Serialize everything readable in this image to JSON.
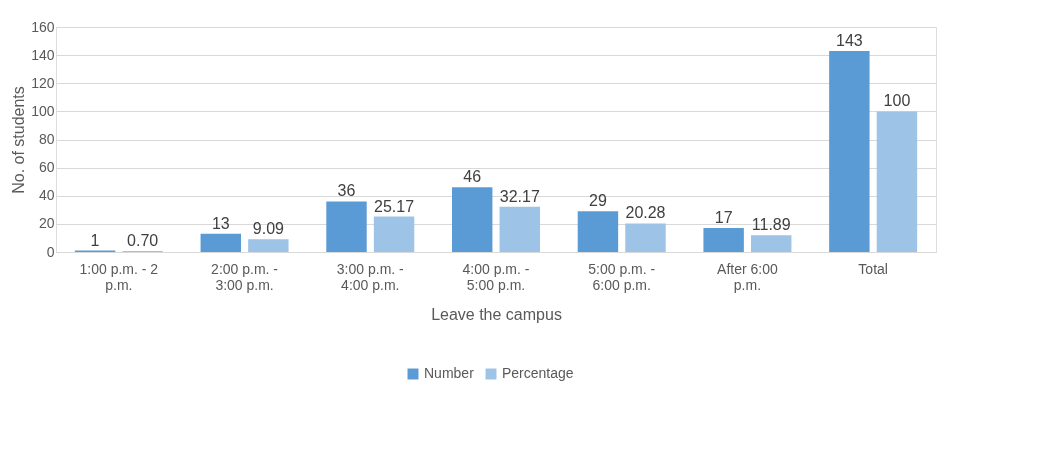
{
  "chart_data": {
    "type": "bar",
    "xlabel": "Leave the campus",
    "ylabel": "No. of students",
    "categories": [
      "1:00 p.m. - 2 p.m.",
      "2:00  p.m. - 3:00 p.m.",
      "3:00 p.m. - 4:00 p.m.",
      "4:00 p.m. - 5:00 p.m.",
      "5:00 p.m. - 6:00 p.m.",
      "After 6:00 p.m.",
      "Total"
    ],
    "series": [
      {
        "name": "Number",
        "color": "#5b9bd5",
        "values": [
          1,
          13,
          36,
          46,
          29,
          17,
          143
        ],
        "value_labels": [
          "1",
          "13",
          "36",
          "46",
          "29",
          "17",
          "143"
        ]
      },
      {
        "name": "Percentage",
        "color": "#9dc3e6",
        "values": [
          0.7,
          9.09,
          25.17,
          32.17,
          20.28,
          11.89,
          100
        ],
        "value_labels": [
          "0.70",
          "9.09",
          "25.17",
          "32.17",
          "20.28",
          "11.89",
          "100"
        ]
      }
    ],
    "ylim": [
      0,
      160
    ],
    "yticks": [
      0,
      20,
      40,
      60,
      80,
      100,
      120,
      140,
      160
    ],
    "grid": "y",
    "legend": "bottom"
  }
}
